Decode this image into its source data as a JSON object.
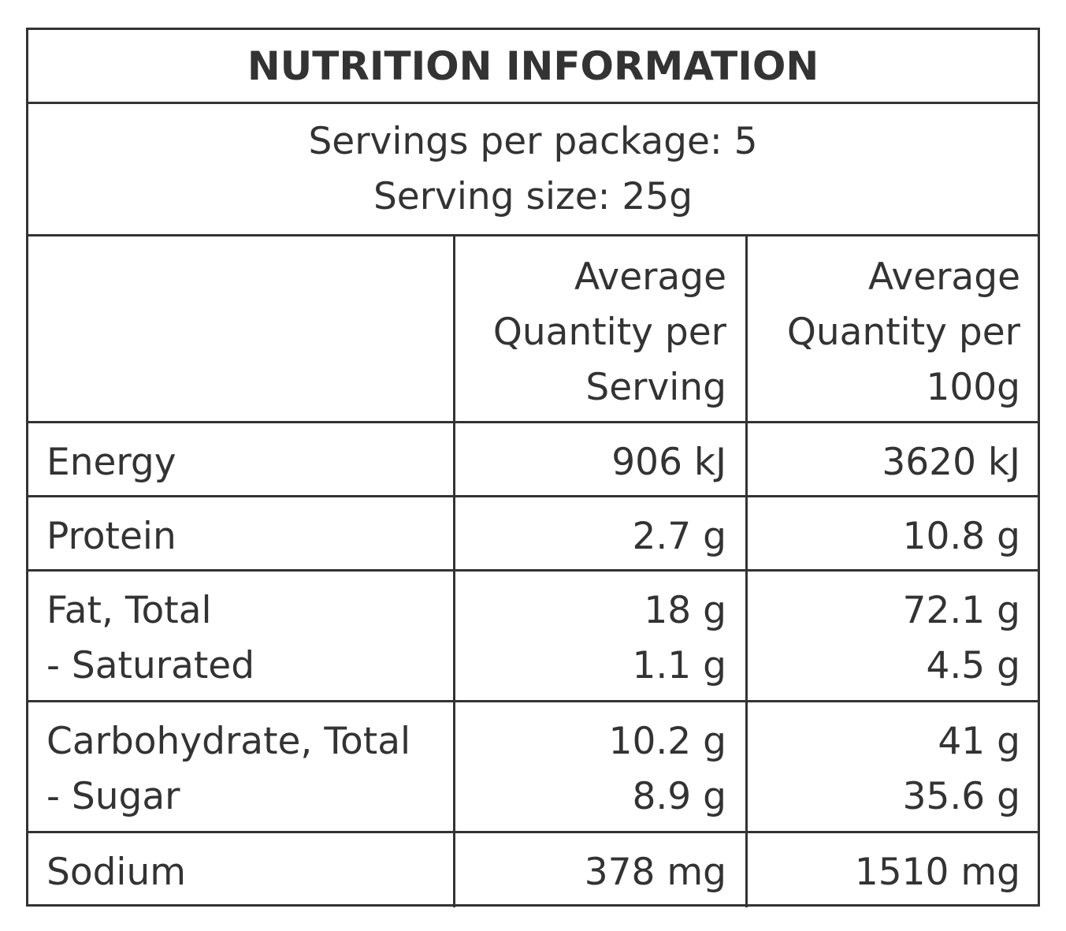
{
  "title": "NUTRITION INFORMATION",
  "servings_per_package": "Servings per package: 5",
  "serving_size": "Serving size: 25g",
  "columns": {
    "per_serving": [
      "Average",
      "Quantity per",
      "Serving"
    ],
    "per_100g": [
      "Average",
      "Quantity per",
      "100g"
    ]
  },
  "rows": [
    {
      "labels": [
        "Energy"
      ],
      "per_serving": [
        "906 kJ"
      ],
      "per_100g": [
        "3620 kJ"
      ]
    },
    {
      "labels": [
        "Protein"
      ],
      "per_serving": [
        "2.7 g"
      ],
      "per_100g": [
        "10.8 g"
      ]
    },
    {
      "labels": [
        "Fat, Total",
        "- Saturated"
      ],
      "per_serving": [
        "18 g",
        "1.1 g"
      ],
      "per_100g": [
        "72.1 g",
        "4.5 g"
      ]
    },
    {
      "labels": [
        "Carbohydrate, Total",
        "- Sugar"
      ],
      "per_serving": [
        "10.2 g",
        "8.9 g"
      ],
      "per_100g": [
        "41 g",
        "35.6 g"
      ]
    },
    {
      "labels": [
        "Sodium"
      ],
      "per_serving": [
        "378 mg"
      ],
      "per_100g": [
        "1510 mg"
      ]
    }
  ]
}
